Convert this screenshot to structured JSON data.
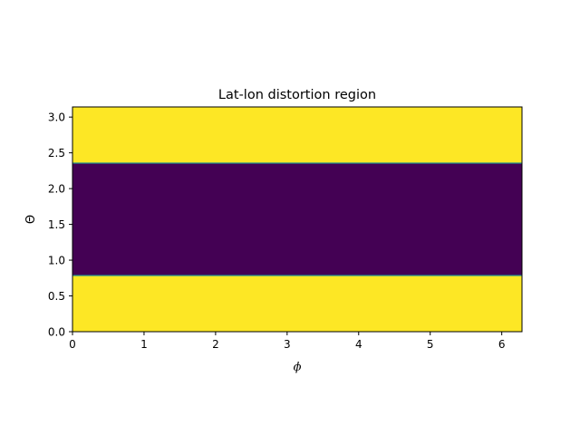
{
  "chart_data": {
    "type": "heatmap",
    "title": "Lat-lon distortion region",
    "xlabel": "ϕ",
    "ylabel": "Θ",
    "xlim": [
      0,
      6.283
    ],
    "ylim": [
      0,
      3.1416
    ],
    "x_ticks": [
      0,
      1,
      2,
      3,
      4,
      5,
      6
    ],
    "x_tick_labels": [
      "0",
      "1",
      "2",
      "3",
      "4",
      "5",
      "6"
    ],
    "y_ticks": [
      0.0,
      0.5,
      1.0,
      1.5,
      2.0,
      2.5,
      3.0
    ],
    "y_tick_labels": [
      "0.0",
      "0.5",
      "1.0",
      "1.5",
      "2.0",
      "2.5",
      "3.0"
    ],
    "grid": false,
    "colormap": "viridis",
    "regions": [
      {
        "y_range": [
          0,
          0.785
        ],
        "value": 1,
        "color": "#fde725"
      },
      {
        "y_range": [
          0.785,
          2.356
        ],
        "value": 0,
        "color": "#440154"
      },
      {
        "y_range": [
          2.356,
          3.1416
        ],
        "value": 1,
        "color": "#fde725"
      }
    ],
    "boundary_color": "#21918c"
  }
}
